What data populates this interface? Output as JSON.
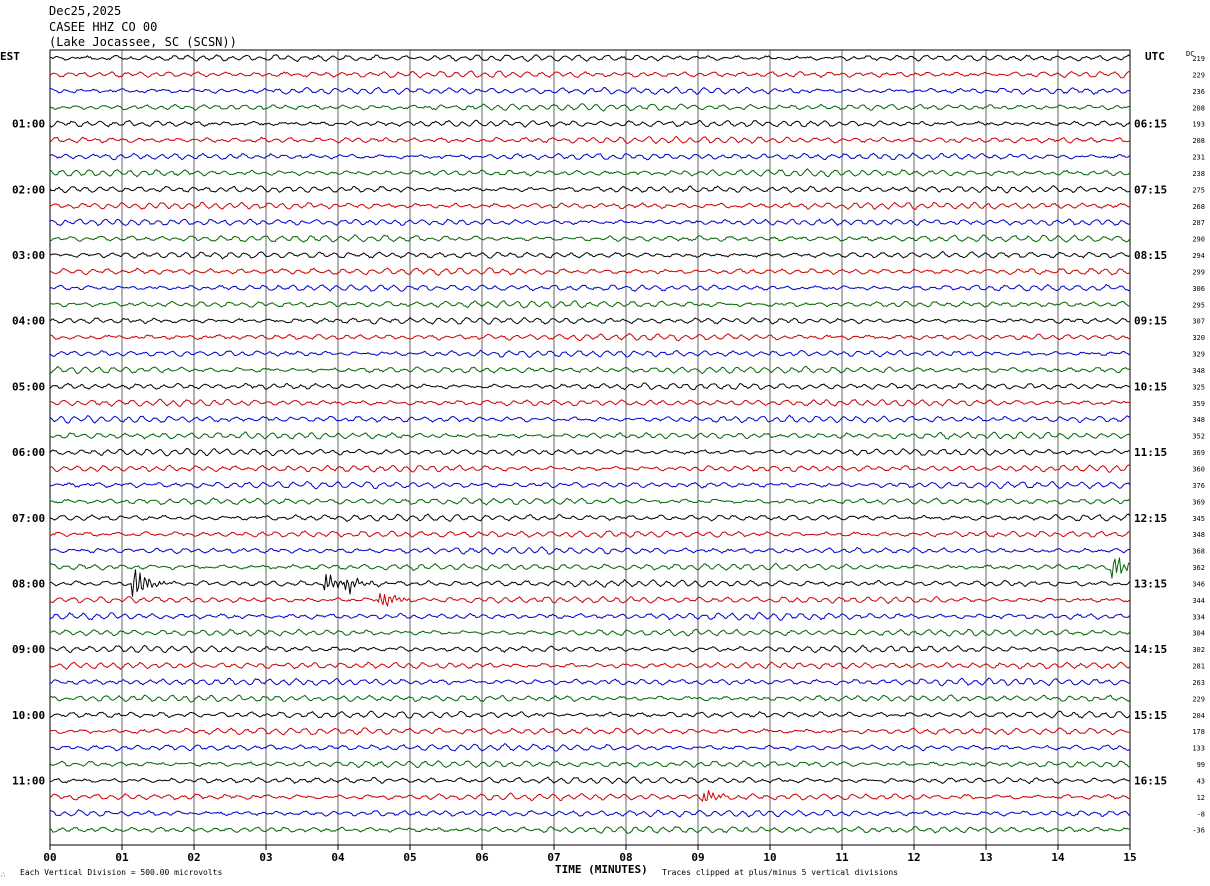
{
  "header": {
    "date": "Dec25,2025",
    "station": "CASEE HHZ CO 00",
    "location": "(Lake Jocassee, SC (SCSN))"
  },
  "labels": {
    "left_tz": "EST",
    "right_tz": "UTC",
    "dc": "DC",
    "xlabel": "TIME (MINUTES)",
    "scale_note": "Each Vertical Division =  500.00 microvolts",
    "clip_note": "Traces clipped at plus/minus 5 vertical divisions",
    "corner_mark": "∴"
  },
  "colors": {
    "trace_cycle": [
      "#000000",
      "#cc0000",
      "#0000cc",
      "#006600"
    ],
    "grid": "#000000"
  },
  "chart_data": {
    "type": "line",
    "title": "CASEE HHZ CO 00",
    "xlabel": "TIME (MINUTES)",
    "xlim": [
      0,
      15
    ],
    "x_ticks": [
      "00",
      "01",
      "02",
      "03",
      "04",
      "05",
      "06",
      "07",
      "08",
      "09",
      "10",
      "11",
      "12",
      "13",
      "14",
      "15"
    ],
    "rows_per_hour": 4,
    "row_minutes": 15,
    "est_hour_labels": [
      "01:00",
      "02:00",
      "03:00",
      "04:00",
      "05:00",
      "06:00",
      "07:00",
      "08:00",
      "09:00",
      "10:00",
      "11:00"
    ],
    "utc_hour_labels": [
      "06:15",
      "07:15",
      "08:15",
      "09:15",
      "10:15",
      "11:15",
      "12:15",
      "13:15",
      "14:15",
      "15:15",
      "16:15"
    ],
    "dc_offsets": [
      219,
      229,
      236,
      208,
      193,
      208,
      231,
      238,
      275,
      268,
      287,
      290,
      294,
      299,
      306,
      295,
      307,
      320,
      329,
      348,
      325,
      359,
      348,
      352,
      369,
      360,
      376,
      369,
      345,
      348,
      368,
      362,
      346,
      344,
      334,
      304,
      302,
      281,
      263,
      229,
      204,
      178,
      133,
      99,
      43,
      12,
      -8,
      -36
    ],
    "events": [
      {
        "row": 32,
        "minute": 1.2,
        "amp": 2.2
      },
      {
        "row": 32,
        "minute": 3.85,
        "amp": 1.6
      },
      {
        "row": 32,
        "minute": 4.15,
        "amp": 1.4
      },
      {
        "row": 33,
        "minute": 4.6,
        "amp": 1.4
      },
      {
        "row": 31,
        "minute": 14.8,
        "amp": 1.6
      },
      {
        "row": 45,
        "minute": 9.1,
        "amp": 1.0
      }
    ]
  }
}
